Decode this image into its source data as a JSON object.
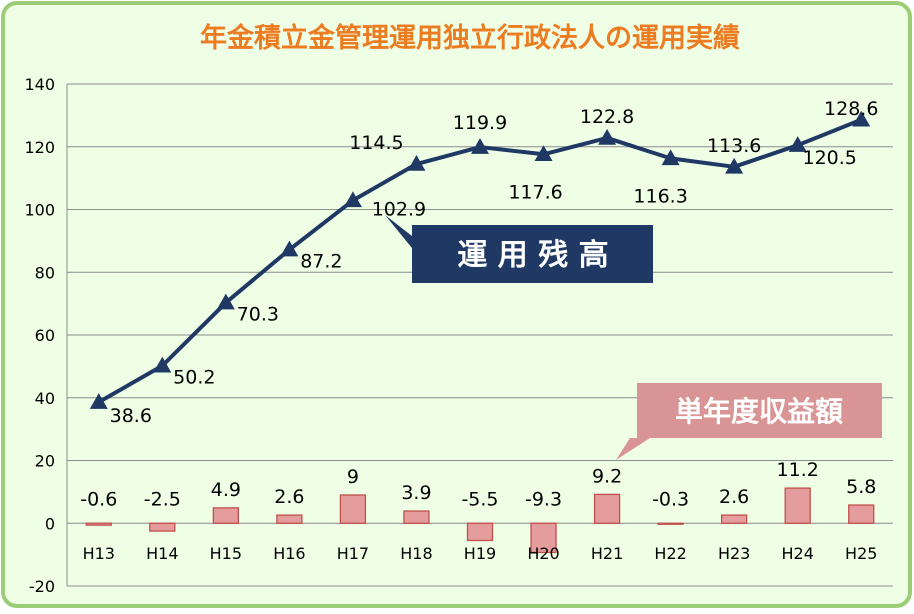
{
  "chart_data": {
    "type": "bar+line",
    "title": "年金積立金管理運用独立行政法人の運用実績",
    "categories": [
      "H13",
      "H14",
      "H15",
      "H16",
      "H17",
      "H18",
      "H19",
      "H20",
      "H21",
      "H22",
      "H23",
      "H24",
      "H25"
    ],
    "series": [
      {
        "name": "運用残高",
        "type": "line",
        "values": [
          38.6,
          50.2,
          70.3,
          87.2,
          102.9,
          114.5,
          119.9,
          117.6,
          122.8,
          116.3,
          113.6,
          120.5,
          128.6
        ]
      },
      {
        "name": "単年度収益額",
        "type": "bar",
        "values": [
          -0.6,
          -2.5,
          4.9,
          2.6,
          9,
          3.9,
          -5.5,
          -9.3,
          9.2,
          -0.3,
          2.6,
          11.2,
          5.8
        ]
      }
    ],
    "ylim": [
      -20,
      140
    ],
    "yticks": [
      -20,
      0,
      20,
      40,
      60,
      80,
      100,
      120,
      140
    ],
    "grid": true,
    "legend_line_label": "運 用 残 高",
    "legend_bar_label": "単年度収益額",
    "colors": {
      "line": "#1f3864",
      "bar_fill": "#e59c9c",
      "bar_stroke": "#c0504d",
      "title": "#ec7c22",
      "background": "#efffe5",
      "border": "#9acd75",
      "line_label_bg": "#1f3864",
      "bar_label_bg": "#d99595"
    }
  }
}
